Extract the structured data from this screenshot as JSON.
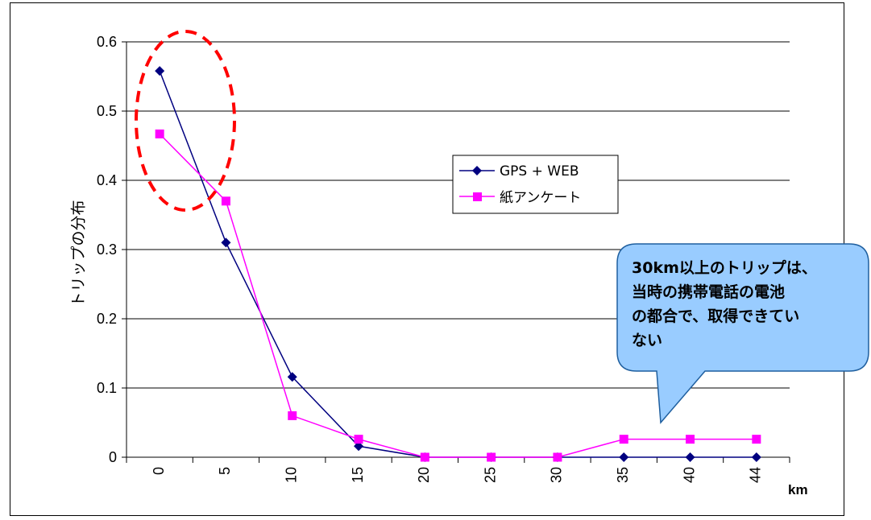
{
  "chart_data": {
    "type": "line",
    "ylabel": "トリップの分布",
    "xunit": "km",
    "categories": [
      "0",
      "5",
      "10",
      "15",
      "20",
      "25",
      "30",
      "35",
      "40",
      "44"
    ],
    "ylim": [
      0,
      0.6
    ],
    "yticks": [
      "0",
      "0.1",
      "0.2",
      "0.3",
      "0.4",
      "0.5",
      "0.6"
    ],
    "grid": true,
    "legend_position": "center-right",
    "series": [
      {
        "name": "GPS + WEB",
        "color": "#000080",
        "marker": "diamond",
        "values": [
          0.558,
          0.31,
          0.116,
          0.016,
          0,
          0,
          0,
          0,
          0,
          0
        ]
      },
      {
        "name": "紙アンケート",
        "color": "#ff00ff",
        "marker": "square",
        "values": [
          0.467,
          0.37,
          0.06,
          0.026,
          0,
          0,
          0,
          0.026,
          0.026,
          0.026
        ]
      }
    ],
    "annotation": {
      "lines": [
        "30km以上のトリップは、",
        "当時の携帯電話の電池",
        "の都合で、取得できてい",
        "ない"
      ],
      "fill": "#99ccff"
    },
    "highlight": {
      "shape": "dashed-ellipse",
      "color": "#ff0000",
      "around_category": "0"
    }
  }
}
